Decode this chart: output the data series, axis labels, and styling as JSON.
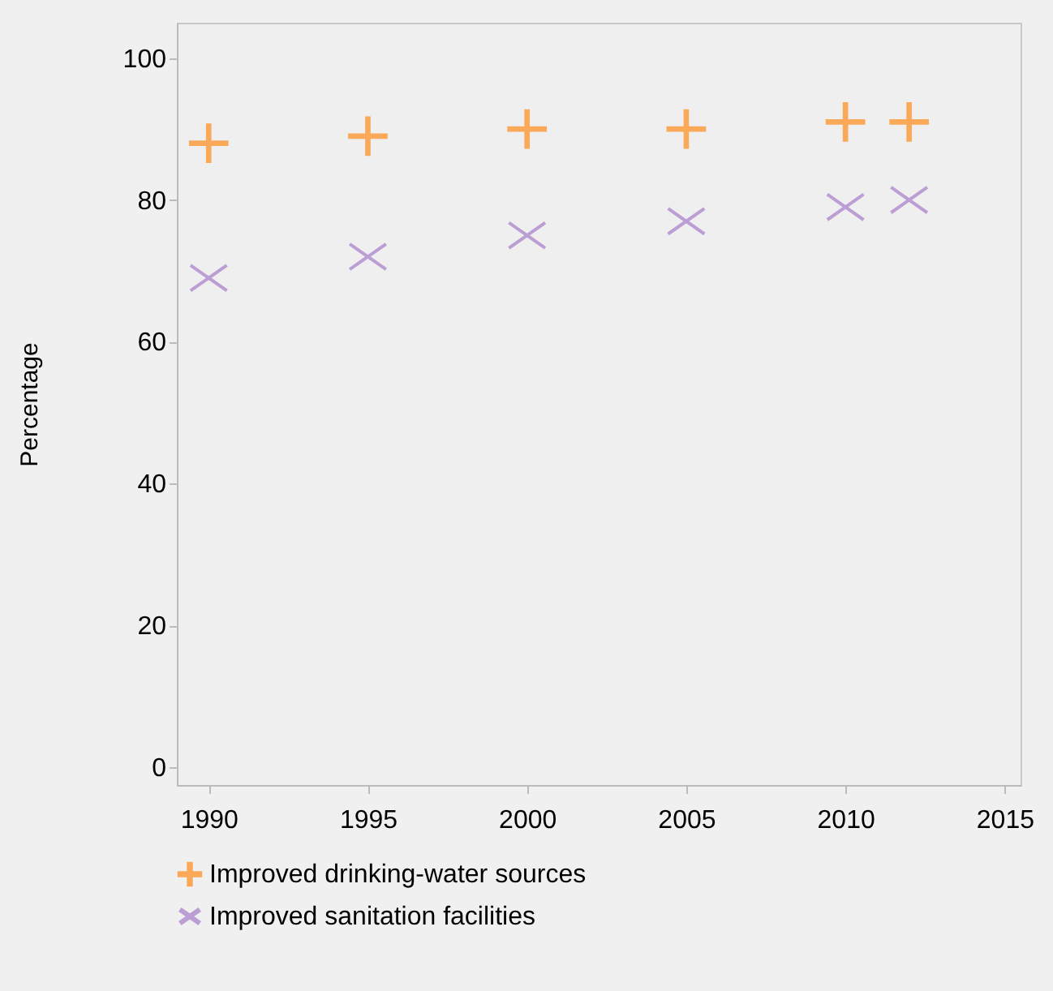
{
  "chart_data": {
    "type": "scatter",
    "ylabel": "Percentage",
    "x": [
      1990,
      1995,
      2000,
      2005,
      2010,
      2012
    ],
    "xlim": [
      1989,
      2015.5
    ],
    "xticks": [
      1990,
      1995,
      2000,
      2005,
      2010,
      2015
    ],
    "ylim": [
      -2.5,
      105
    ],
    "yticks": [
      0,
      20,
      40,
      60,
      80,
      100
    ],
    "grid": false,
    "legend": "bottom",
    "series": [
      {
        "name": "Improved drinking-water sources",
        "color": "#ff8c1a",
        "marker": "cross",
        "values": [
          88,
          89,
          90,
          90,
          91,
          91
        ]
      },
      {
        "name": "Improved sanitation facilities",
        "color": "#a67cc8",
        "marker": "x",
        "values": [
          69,
          72,
          75,
          77,
          79,
          80
        ]
      }
    ]
  }
}
